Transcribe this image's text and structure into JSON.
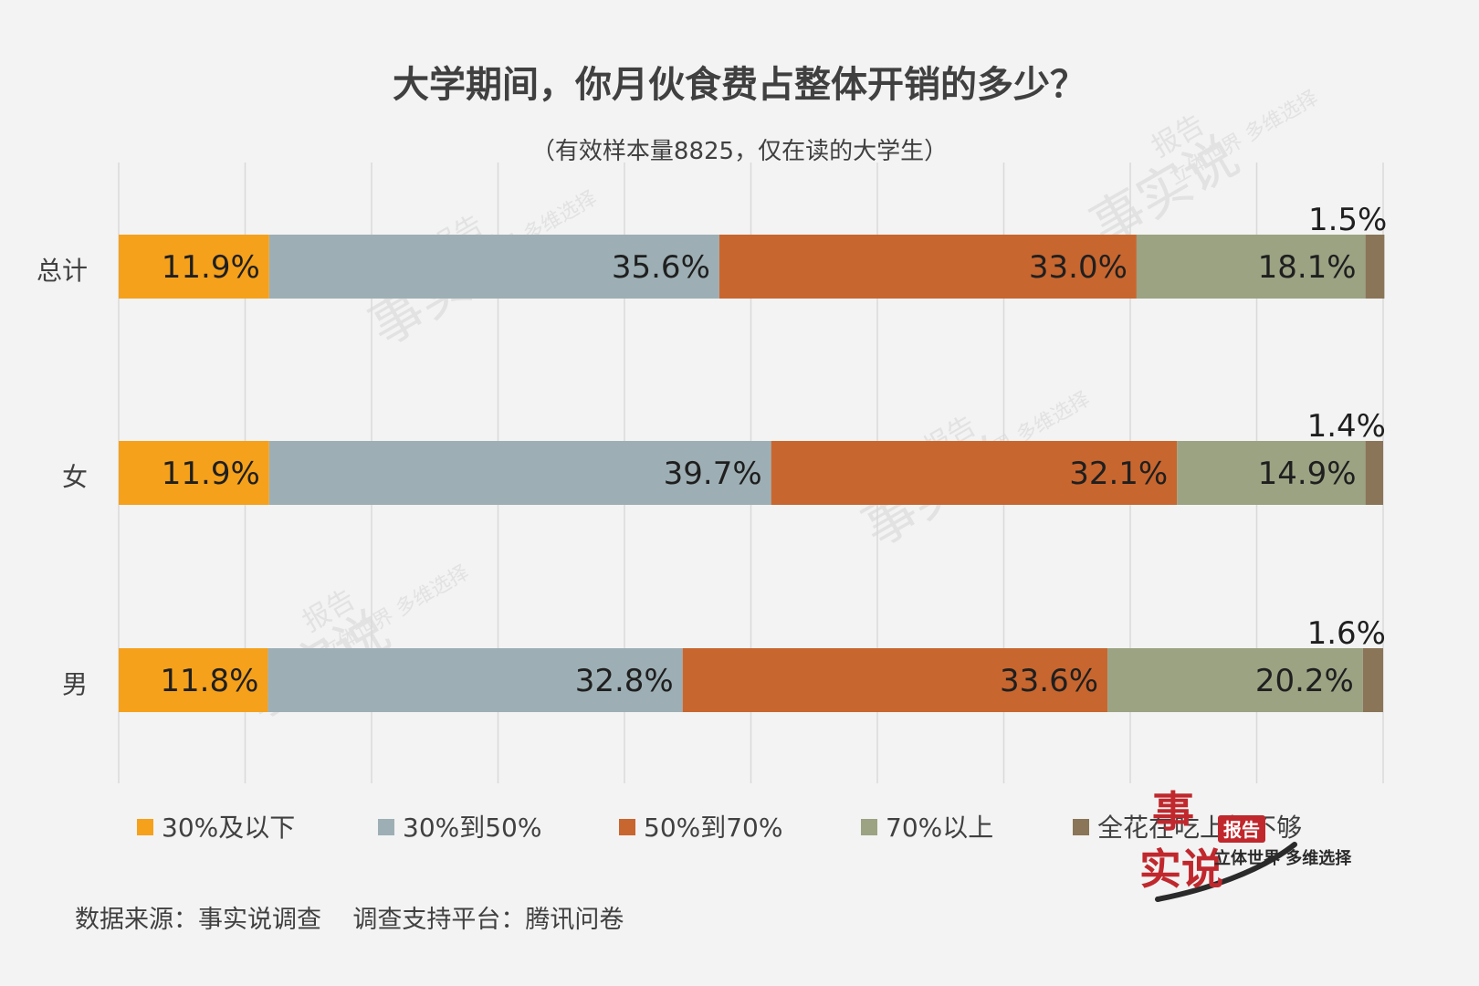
{
  "chart_data": {
    "type": "bar",
    "orientation": "horizontal",
    "stacked": true,
    "title": "大学期间，你月伙食费占整体开销的多少？",
    "subtitle": "（有效样本量8825，仅在读的大学生）",
    "categories": [
      "总计",
      "女",
      "男"
    ],
    "series": [
      {
        "name": "30%及以下",
        "color": "#f5a11c",
        "values": [
          11.9,
          11.9,
          11.8
        ],
        "labels": [
          "11.9%",
          "11.9%",
          "11.8%"
        ]
      },
      {
        "name": "30%到50%",
        "color": "#9dafb4",
        "values": [
          35.6,
          39.7,
          32.8
        ],
        "labels": [
          "35.6%",
          "39.7%",
          "32.8%"
        ]
      },
      {
        "name": "50%到70%",
        "color": "#c8662f",
        "values": [
          33.0,
          32.1,
          33.6
        ],
        "labels": [
          "33.0%",
          "32.1%",
          "33.6%"
        ]
      },
      {
        "name": "70%以上",
        "color": "#9ba383",
        "values": [
          18.1,
          14.9,
          20.2
        ],
        "labels": [
          "18.1%",
          "14.9%",
          "20.2%"
        ]
      },
      {
        "name": "全花在吃上都不够",
        "color": "#8a7558",
        "values": [
          1.5,
          1.4,
          1.6
        ],
        "labels": [
          "1.5%",
          "1.4%",
          "1.6%"
        ]
      }
    ],
    "xlim": [
      0,
      100
    ],
    "grid": true,
    "legend_position": "bottom"
  },
  "source_note": "数据来源：事实说调查    调查支持平台：腾讯问卷",
  "watermark": {
    "text_main": "事实说",
    "badge": "报告",
    "tagline": "立体世界 多维选择"
  }
}
